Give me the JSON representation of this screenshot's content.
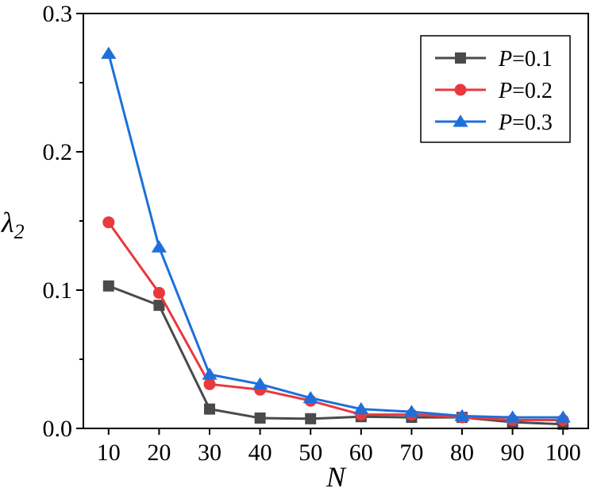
{
  "chart_data": {
    "type": "line",
    "title": "",
    "xlabel": "N",
    "ylabel": "λ",
    "ylabel_subscript": "2",
    "x": [
      10,
      20,
      30,
      40,
      50,
      60,
      70,
      80,
      90,
      100
    ],
    "xlim": [
      5,
      105
    ],
    "ylim": [
      0,
      0.3
    ],
    "xticks": [
      10,
      20,
      30,
      40,
      50,
      60,
      70,
      80,
      90,
      100
    ],
    "xtick_labels": [
      "10",
      "20",
      "30",
      "40",
      "50",
      "60",
      "70",
      "80",
      "90",
      "100"
    ],
    "yticks": [
      0,
      0.1,
      0.2,
      0.3
    ],
    "ytick_labels": [
      "0.0",
      "0.1",
      "0.2",
      "0.3"
    ],
    "grid": false,
    "legend_position": "top-right",
    "series": [
      {
        "name": "P=0.1",
        "legend_var": "P",
        "legend_rest": "=0.1",
        "color": "#4a4a4a",
        "marker": "square",
        "values": [
          0.103,
          0.089,
          0.014,
          0.0075,
          0.007,
          0.0085,
          0.008,
          0.008,
          0.0045,
          0.003
        ]
      },
      {
        "name": "P=0.2",
        "legend_var": "P",
        "legend_rest": "=0.2",
        "color": "#e8393d",
        "marker": "circle",
        "values": [
          0.149,
          0.098,
          0.032,
          0.028,
          0.02,
          0.01,
          0.01,
          0.008,
          0.006,
          0.006
        ]
      },
      {
        "name": "P=0.3",
        "legend_var": "P",
        "legend_rest": "=0.3",
        "color": "#1f6fd9",
        "marker": "triangle",
        "values": [
          0.271,
          0.131,
          0.039,
          0.032,
          0.022,
          0.014,
          0.012,
          0.009,
          0.008,
          0.008
        ]
      }
    ]
  }
}
